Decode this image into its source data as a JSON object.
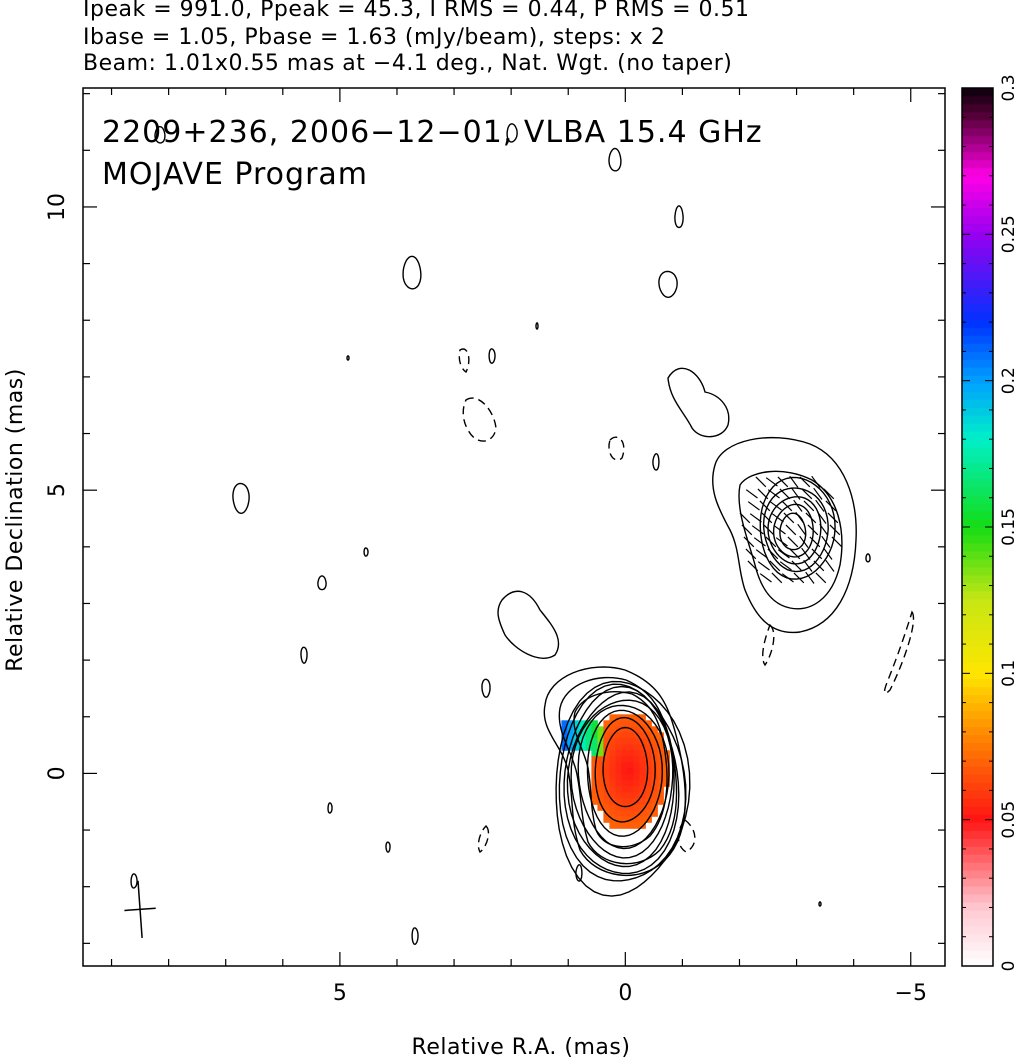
{
  "header": {
    "line1": "Ipeak = 991.0, Ppeak = 45.3, I RMS = 0.44, P RMS = 0.51",
    "line2": "Ibase = 1.05, Pbase = 1.63 (mJy/beam), steps: x 2",
    "line3": "Beam: 1.01x0.55 mas at −4.1 deg., Nat. Wgt. (no taper)"
  },
  "chart_data": {
    "type": "heatmap",
    "annotation_line1": "2209+236, 2006−12−01, VLBA 15.4 GHz",
    "annotation_line2": "MOJAVE Program",
    "xlabel": "Relative R.A. (mas)",
    "ylabel": "Relative Declination (mas)",
    "xlim": [
      9.5,
      -5.6
    ],
    "ylim": [
      -3.4,
      12.1
    ],
    "x_ticks": [
      {
        "value": 5,
        "label": "5"
      },
      {
        "value": 0,
        "label": "0"
      },
      {
        "value": -5,
        "label": "−5"
      }
    ],
    "y_ticks": [
      {
        "value": 0,
        "label": "0"
      },
      {
        "value": 5,
        "label": "5"
      },
      {
        "value": 10,
        "label": "10"
      }
    ],
    "colorbar": {
      "range": [
        0,
        0.3
      ],
      "ticks": [
        {
          "value": 0,
          "label": "0"
        },
        {
          "value": 0.05,
          "label": "0.05"
        },
        {
          "value": 0.1,
          "label": "0.1"
        },
        {
          "value": 0.15,
          "label": "0.15"
        },
        {
          "value": 0.2,
          "label": "0.2"
        },
        {
          "value": 0.25,
          "label": "0.25"
        },
        {
          "value": 0.3,
          "label": "0.3"
        }
      ]
    },
    "core": {
      "x": 0.0,
      "y": 0.1,
      "contour_levels": 9
    },
    "jet_component": {
      "x": -2.9,
      "y": 4.3,
      "contour_levels": 6
    },
    "polarization": {
      "x": 0.0,
      "y": 0.1,
      "core_fraction": 0.07,
      "edge_fraction": 0.19
    },
    "beam": {
      "major_mas": 1.01,
      "minor_mas": 0.55,
      "pa_deg": -4.1,
      "x": 8.5,
      "y": -2.4
    }
  }
}
